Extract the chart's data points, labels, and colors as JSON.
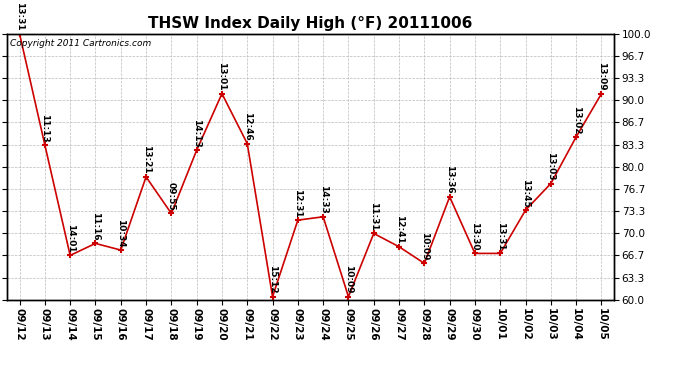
{
  "title": "THSW Index Daily High (°F) 20111006",
  "copyright": "Copyright 2011 Cartronics.com",
  "dates": [
    "09/12",
    "09/13",
    "09/14",
    "09/15",
    "09/16",
    "09/17",
    "09/18",
    "09/19",
    "09/20",
    "09/21",
    "09/22",
    "09/23",
    "09/24",
    "09/25",
    "09/26",
    "09/27",
    "09/28",
    "09/29",
    "09/30",
    "10/01",
    "10/02",
    "10/03",
    "10/04",
    "10/05"
  ],
  "values": [
    100.0,
    83.3,
    66.7,
    68.5,
    67.5,
    78.5,
    73.0,
    82.5,
    91.0,
    83.5,
    60.5,
    72.0,
    72.5,
    60.5,
    70.0,
    68.0,
    65.5,
    75.5,
    67.0,
    67.0,
    73.5,
    77.5,
    84.5,
    91.0
  ],
  "times": [
    "13:31",
    "11:13",
    "14:01",
    "11:16",
    "10:34",
    "13:21",
    "09:55",
    "14:13",
    "13:01",
    "12:46",
    "15:12",
    "12:31",
    "14:33",
    "10:09",
    "11:31",
    "12:41",
    "10:09",
    "13:36",
    "13:30",
    "13:31",
    "13:45",
    "13:03",
    "13:02",
    "13:09"
  ],
  "ylim": [
    60.0,
    100.0
  ],
  "yticks": [
    60.0,
    63.3,
    66.7,
    70.0,
    73.3,
    76.7,
    80.0,
    83.3,
    86.7,
    90.0,
    93.3,
    96.7,
    100.0
  ],
  "line_color": "#cc0000",
  "marker_color": "#cc0000",
  "background_color": "#ffffff",
  "grid_color": "#bbbbbb",
  "title_fontsize": 11,
  "label_fontsize": 6.5,
  "tick_fontsize": 7.5,
  "copyright_fontsize": 6.5
}
